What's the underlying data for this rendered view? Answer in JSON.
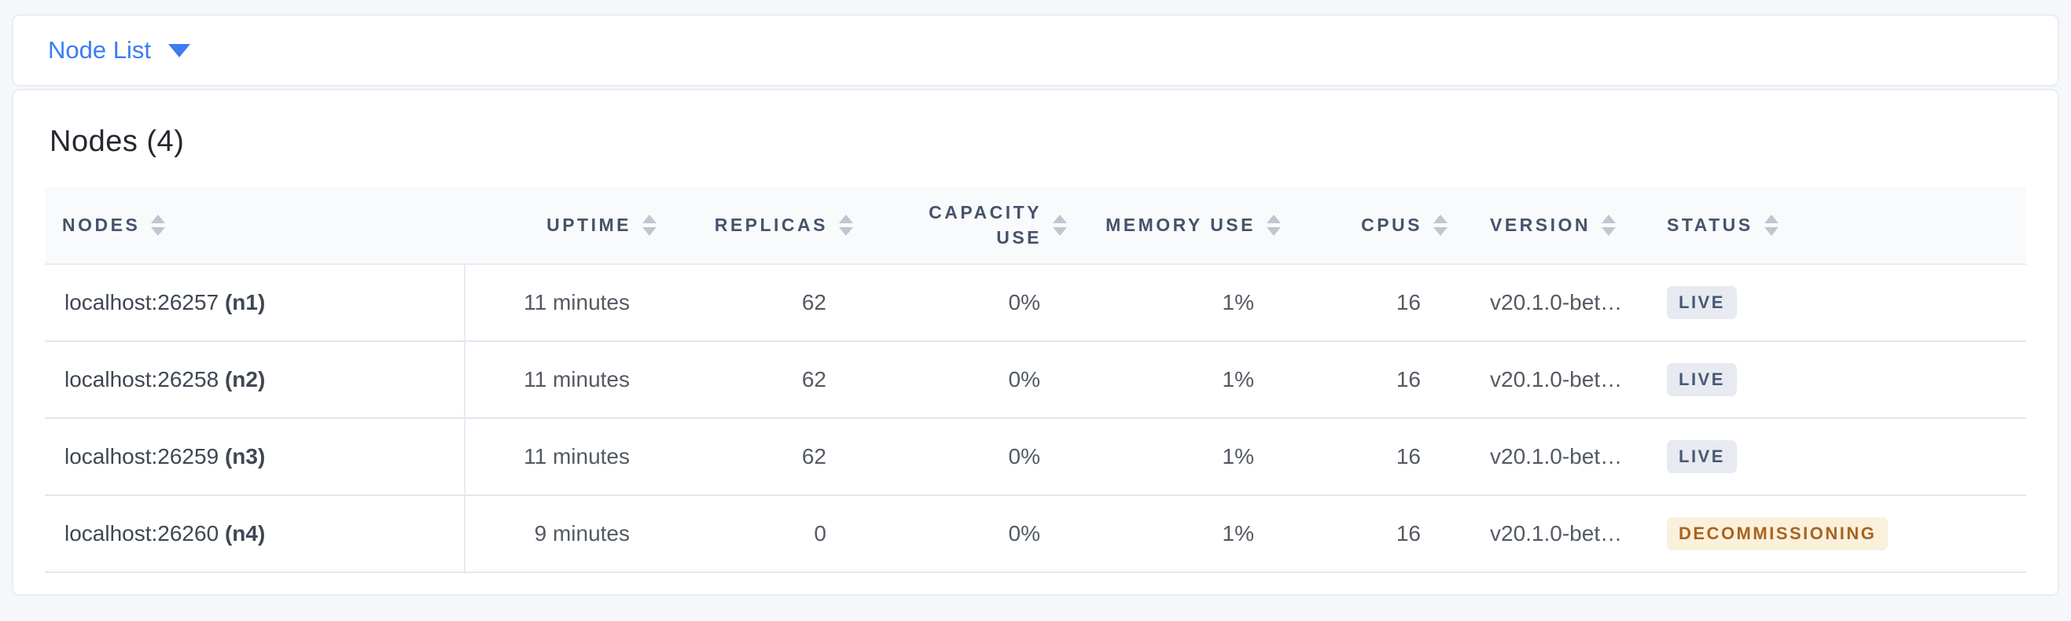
{
  "toolbar": {
    "dropdown_label": "Node List"
  },
  "page_title": "Nodes (4)",
  "table": {
    "columns": [
      {
        "label": "NODES"
      },
      {
        "label": "UPTIME"
      },
      {
        "label": "REPLICAS"
      },
      {
        "label": "CAPACITY USE"
      },
      {
        "label": "MEMORY USE"
      },
      {
        "label": "CPUS"
      },
      {
        "label": "VERSION"
      },
      {
        "label": "STATUS"
      }
    ],
    "rows": [
      {
        "address": "localhost:26257",
        "node_id": "(n1)",
        "uptime": "11 minutes",
        "replicas": "62",
        "capacity_use": "0%",
        "memory_use": "1%",
        "cpus": "16",
        "version": "v20.1.0-bet…",
        "status": "LIVE",
        "status_type": "live"
      },
      {
        "address": "localhost:26258",
        "node_id": "(n2)",
        "uptime": "11 minutes",
        "replicas": "62",
        "capacity_use": "0%",
        "memory_use": "1%",
        "cpus": "16",
        "version": "v20.1.0-bet…",
        "status": "LIVE",
        "status_type": "live"
      },
      {
        "address": "localhost:26259",
        "node_id": "(n3)",
        "uptime": "11 minutes",
        "replicas": "62",
        "capacity_use": "0%",
        "memory_use": "1%",
        "cpus": "16",
        "version": "v20.1.0-bet…",
        "status": "LIVE",
        "status_type": "live"
      },
      {
        "address": "localhost:26260",
        "node_id": "(n4)",
        "uptime": "9 minutes",
        "replicas": "0",
        "capacity_use": "0%",
        "memory_use": "1%",
        "cpus": "16",
        "version": "v20.1.0-bet…",
        "status": "DECOMMISSIONING",
        "status_type": "decommissioning"
      }
    ]
  },
  "colors": {
    "accent_blue": "#3b7cf2",
    "live_badge_bg": "#e7eaf1",
    "live_badge_text": "#475872",
    "decommissioning_badge_bg": "#faf0dc",
    "decommissioning_badge_text": "#a9631e",
    "header_text": "#45536b",
    "page_bg": "#f5f7fa"
  }
}
